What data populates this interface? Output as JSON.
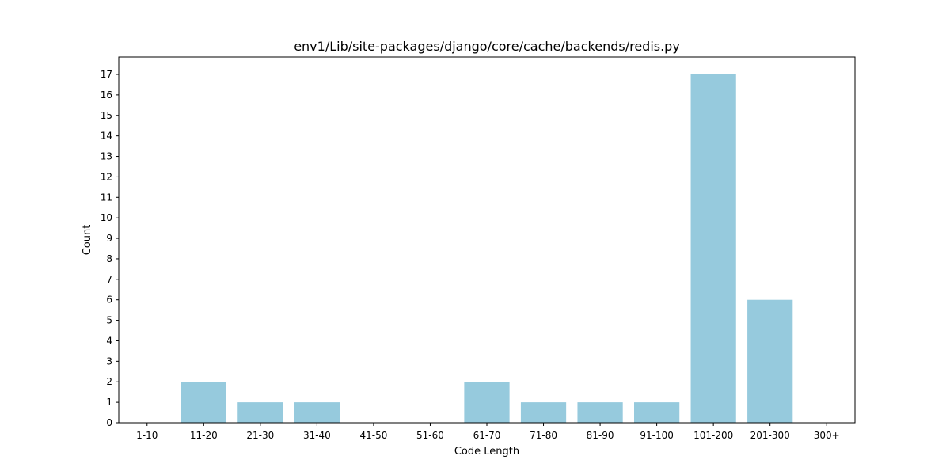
{
  "chart_data": {
    "type": "bar",
    "title": "env1/Lib/site-packages/django/core/cache/backends/redis.py",
    "xlabel": "Code Length",
    "ylabel": "Count",
    "categories": [
      "1-10",
      "11-20",
      "21-30",
      "31-40",
      "41-50",
      "51-60",
      "61-70",
      "71-80",
      "81-90",
      "91-100",
      "101-200",
      "201-300",
      "300+"
    ],
    "values": [
      0,
      2,
      1,
      1,
      0,
      0,
      2,
      1,
      1,
      1,
      17,
      6,
      0
    ],
    "ylim": [
      0,
      17.85
    ],
    "yticks": [
      0,
      1,
      2,
      3,
      4,
      5,
      6,
      7,
      8,
      9,
      10,
      11,
      12,
      13,
      14,
      15,
      16,
      17
    ],
    "bar_color": "#96cadd",
    "grid": false,
    "legend": "none"
  }
}
